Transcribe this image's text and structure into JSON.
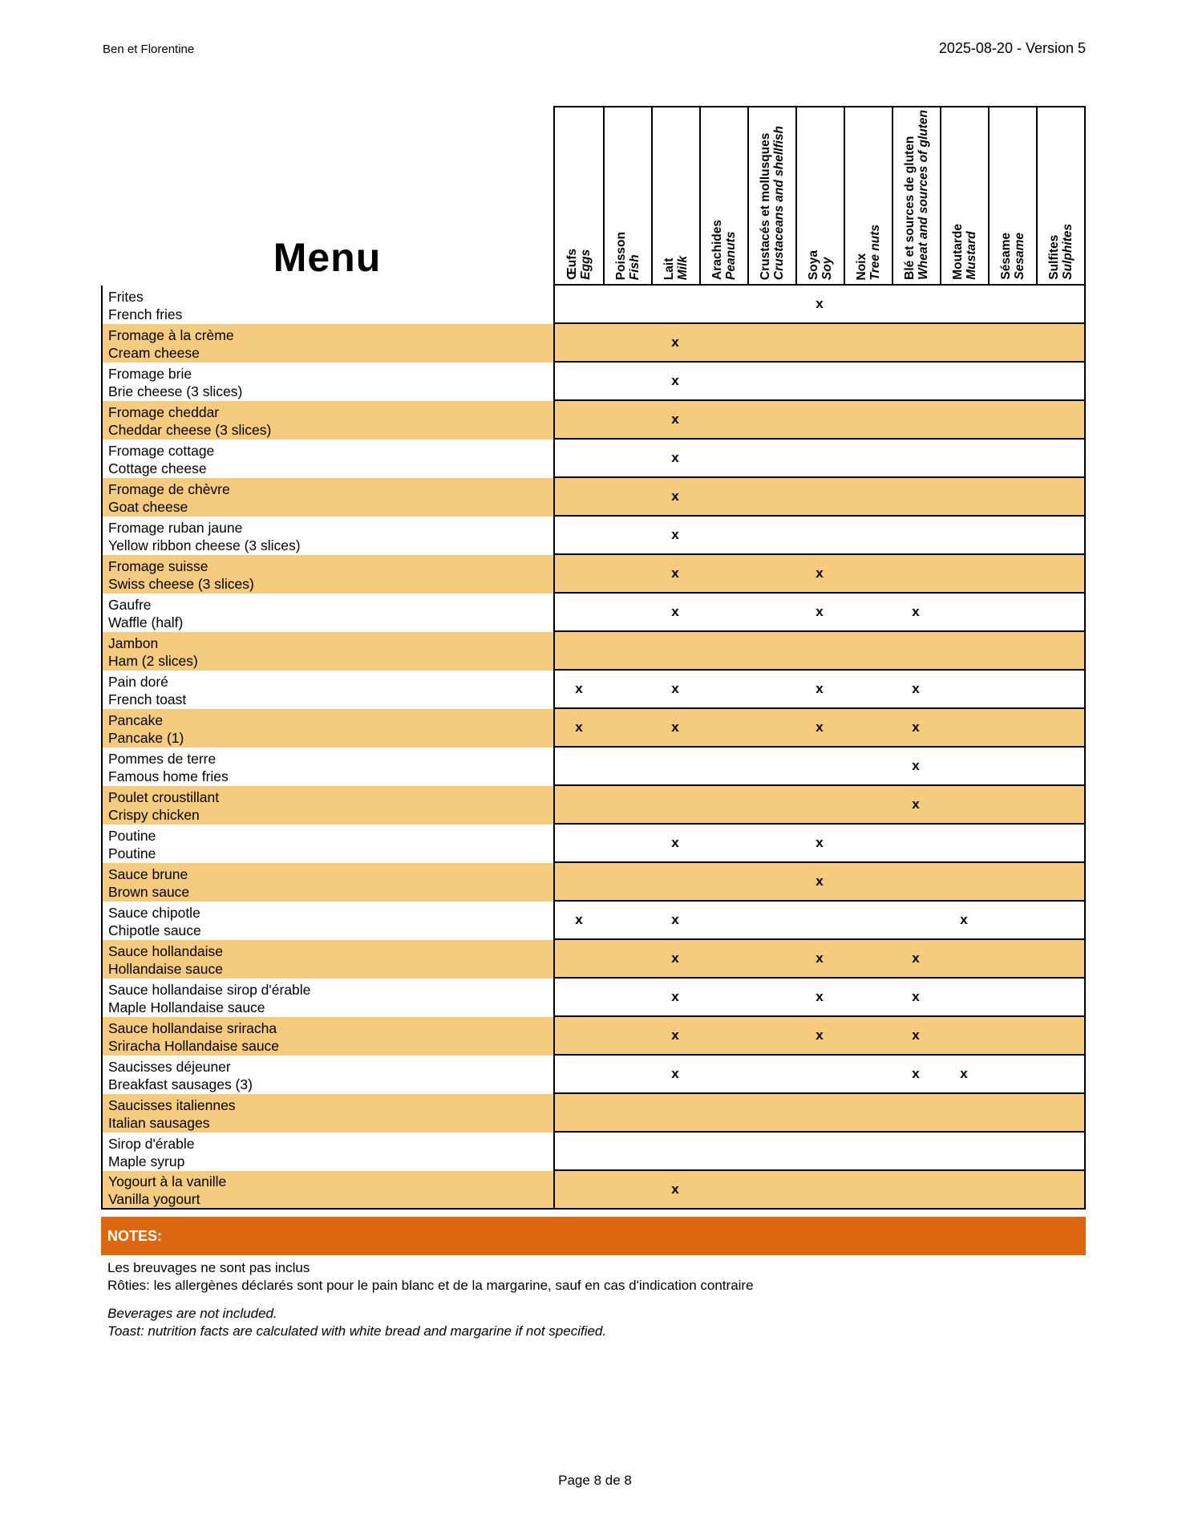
{
  "page_header": {
    "company": "Ben et Florentine",
    "version": "2025-08-20 - Version 5"
  },
  "menu_title": "Menu",
  "mark_symbol": "x",
  "allergens": [
    {
      "fr": "Œufs",
      "en": "Eggs"
    },
    {
      "fr": "Poisson",
      "en": "Fish"
    },
    {
      "fr": "Lait",
      "en": "Milk"
    },
    {
      "fr": "Arachides",
      "en": "Peanuts"
    },
    {
      "fr": "Crustacés et mollusques",
      "en": "Crustaceans and shellfish"
    },
    {
      "fr": "Soya",
      "en": "Soy"
    },
    {
      "fr": "Noix",
      "en": "Tree nuts"
    },
    {
      "fr": "Blé et sources de gluten",
      "en": "Wheat and sources of gluten"
    },
    {
      "fr": "Moutarde",
      "en": "Mustard"
    },
    {
      "fr": "Sésame",
      "en": "Sesame"
    },
    {
      "fr": "Sulfites",
      "en": "Sulphites"
    }
  ],
  "rows": [
    {
      "fr": "Frites",
      "en": "French fries",
      "marks": [
        0,
        0,
        0,
        0,
        0,
        1,
        0,
        0,
        0,
        0,
        0
      ]
    },
    {
      "fr": "Fromage à la crème",
      "en": "Cream cheese",
      "marks": [
        0,
        0,
        1,
        0,
        0,
        0,
        0,
        0,
        0,
        0,
        0
      ]
    },
    {
      "fr": "Fromage brie",
      "en": "Brie cheese (3 slices)",
      "marks": [
        0,
        0,
        1,
        0,
        0,
        0,
        0,
        0,
        0,
        0,
        0
      ]
    },
    {
      "fr": "Fromage cheddar",
      "en": "Cheddar cheese (3 slices)",
      "marks": [
        0,
        0,
        1,
        0,
        0,
        0,
        0,
        0,
        0,
        0,
        0
      ]
    },
    {
      "fr": "Fromage cottage",
      "en": "Cottage cheese",
      "marks": [
        0,
        0,
        1,
        0,
        0,
        0,
        0,
        0,
        0,
        0,
        0
      ]
    },
    {
      "fr": "Fromage de chèvre",
      "en": "Goat cheese",
      "marks": [
        0,
        0,
        1,
        0,
        0,
        0,
        0,
        0,
        0,
        0,
        0
      ]
    },
    {
      "fr": "Fromage ruban jaune",
      "en": "Yellow ribbon cheese (3 slices)",
      "marks": [
        0,
        0,
        1,
        0,
        0,
        0,
        0,
        0,
        0,
        0,
        0
      ]
    },
    {
      "fr": "Fromage suisse",
      "en": "Swiss cheese (3 slices)",
      "marks": [
        0,
        0,
        1,
        0,
        0,
        1,
        0,
        0,
        0,
        0,
        0
      ]
    },
    {
      "fr": "Gaufre",
      "en": "Waffle (half)",
      "marks": [
        0,
        0,
        1,
        0,
        0,
        1,
        0,
        1,
        0,
        0,
        0
      ]
    },
    {
      "fr": "Jambon",
      "en": "Ham (2 slices)",
      "marks": [
        0,
        0,
        0,
        0,
        0,
        0,
        0,
        0,
        0,
        0,
        0
      ]
    },
    {
      "fr": "Pain doré",
      "en": "French toast",
      "marks": [
        1,
        0,
        1,
        0,
        0,
        1,
        0,
        1,
        0,
        0,
        0
      ]
    },
    {
      "fr": "Pancake",
      "en": "Pancake (1)",
      "marks": [
        1,
        0,
        1,
        0,
        0,
        1,
        0,
        1,
        0,
        0,
        0
      ]
    },
    {
      "fr": "Pommes de terre",
      "en": "Famous home fries",
      "marks": [
        0,
        0,
        0,
        0,
        0,
        0,
        0,
        1,
        0,
        0,
        0
      ]
    },
    {
      "fr": "Poulet croustillant",
      "en": "Crispy chicken",
      "marks": [
        0,
        0,
        0,
        0,
        0,
        0,
        0,
        1,
        0,
        0,
        0
      ]
    },
    {
      "fr": "Poutine",
      "en": "Poutine",
      "marks": [
        0,
        0,
        1,
        0,
        0,
        1,
        0,
        0,
        0,
        0,
        0
      ]
    },
    {
      "fr": "Sauce brune",
      "en": "Brown sauce",
      "marks": [
        0,
        0,
        0,
        0,
        0,
        1,
        0,
        0,
        0,
        0,
        0
      ]
    },
    {
      "fr": "Sauce chipotle",
      "en": "Chipotle sauce",
      "marks": [
        1,
        0,
        1,
        0,
        0,
        0,
        0,
        0,
        1,
        0,
        0
      ]
    },
    {
      "fr": "Sauce hollandaise",
      "en": "Hollandaise sauce",
      "marks": [
        0,
        0,
        1,
        0,
        0,
        1,
        0,
        1,
        0,
        0,
        0
      ]
    },
    {
      "fr": "Sauce hollandaise sirop d'érable",
      "en": "Maple Hollandaise sauce",
      "marks": [
        0,
        0,
        1,
        0,
        0,
        1,
        0,
        1,
        0,
        0,
        0
      ]
    },
    {
      "fr": "Sauce hollandaise sriracha",
      "en": "Sriracha Hollandaise sauce",
      "marks": [
        0,
        0,
        1,
        0,
        0,
        1,
        0,
        1,
        0,
        0,
        0
      ]
    },
    {
      "fr": "Saucisses déjeuner",
      "en": "Breakfast sausages (3)",
      "marks": [
        0,
        0,
        1,
        0,
        0,
        0,
        0,
        1,
        1,
        0,
        0
      ]
    },
    {
      "fr": "Saucisses italiennes",
      "en": "Italian sausages",
      "marks": [
        0,
        0,
        0,
        0,
        0,
        0,
        0,
        0,
        0,
        0,
        0
      ]
    },
    {
      "fr": "Sirop d'érable",
      "en": "Maple syrup",
      "marks": [
        0,
        0,
        0,
        0,
        0,
        0,
        0,
        0,
        0,
        0,
        0
      ]
    },
    {
      "fr": "Yogourt à la vanille",
      "en": "Vanilla yogourt",
      "marks": [
        0,
        0,
        1,
        0,
        0,
        0,
        0,
        0,
        0,
        0,
        0
      ]
    }
  ],
  "notes": {
    "title": "NOTES:",
    "fr_lines": [
      "Les breuvages ne sont pas inclus",
      "Rôties: les allergènes déclarés sont pour le pain blanc et de la margarine, sauf en cas d'indication contraire"
    ],
    "en_lines": [
      "Beverages are not included.",
      "Toast: nutrition facts are calculated with white bread and margarine if not specified."
    ]
  },
  "footer": {
    "page_label": "Page 8 de 8"
  },
  "colors": {
    "row_alt": "#F5CB7F",
    "notes_bar": "#DB680F"
  }
}
